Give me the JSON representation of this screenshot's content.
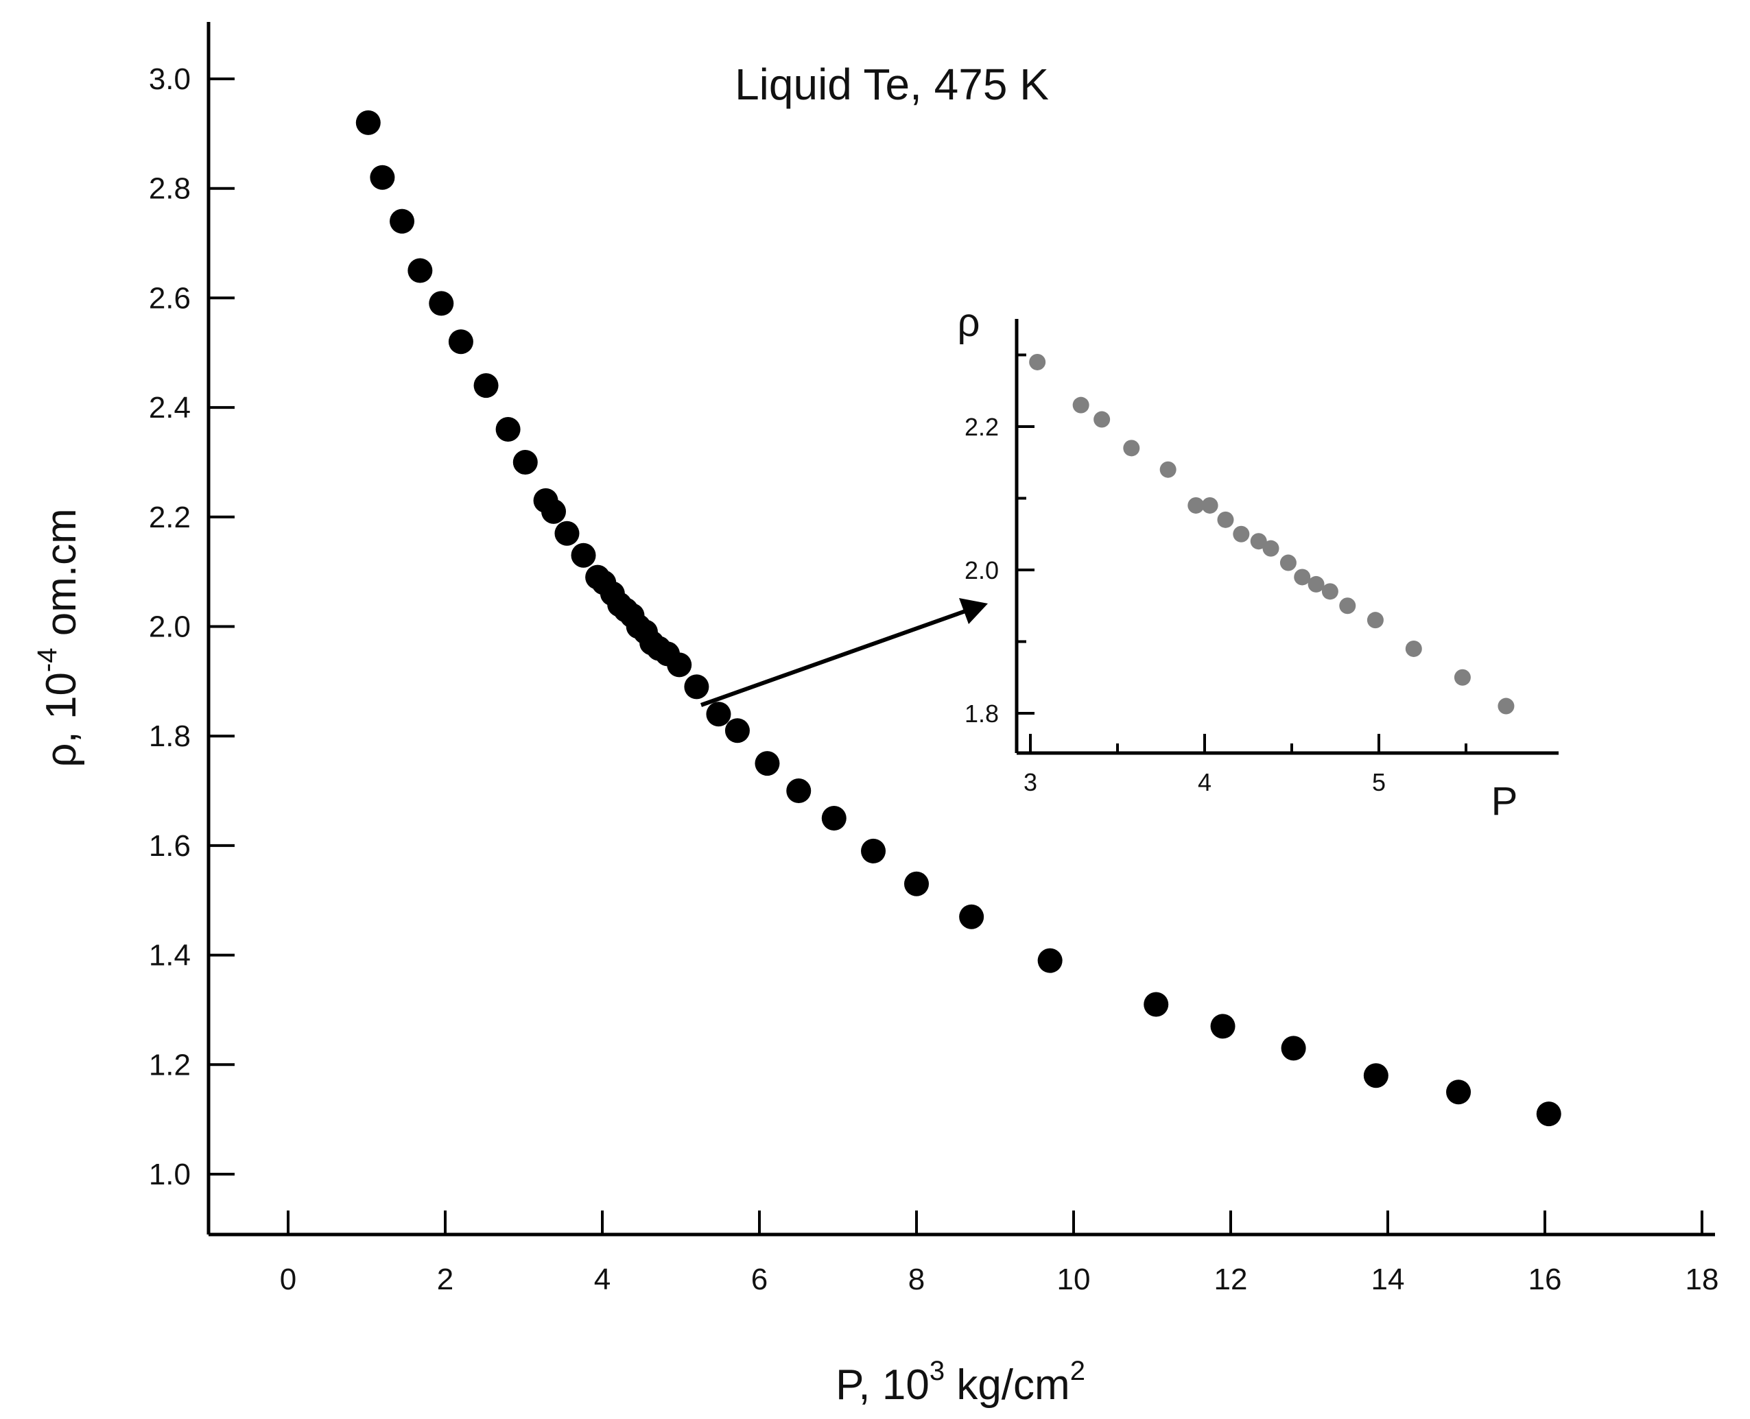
{
  "chart_data": [
    {
      "type": "scatter",
      "title": "Liquid Te, 475 K",
      "xlabel": {
        "prefix": "P, 10",
        "sup": "3",
        "suffix": " kg/cm",
        "sup2": "2"
      },
      "ylabel": {
        "prefix": "ρ, 10",
        "sup": "-4",
        "suffix": " om.cm"
      },
      "xlim": [
        -1,
        18
      ],
      "ylim": [
        0.9,
        3.1
      ],
      "xticks": [
        0,
        2,
        4,
        6,
        8,
        10,
        12,
        14,
        16,
        18
      ],
      "xtick_labels": [
        "0",
        "2",
        "4",
        "6",
        "8",
        "10",
        "12",
        "14",
        "16",
        "18"
      ],
      "yticks": [
        1.0,
        1.2,
        1.4,
        1.6,
        1.8,
        2.0,
        2.2,
        2.4,
        2.6,
        2.8,
        3.0
      ],
      "ytick_labels": [
        "1.0",
        "1.2",
        "1.4",
        "1.6",
        "1.8",
        "2.0",
        "2.2",
        "2.4",
        "2.6",
        "2.8",
        "3.0"
      ],
      "grid": false,
      "marker_color": "#000000",
      "points": [
        [
          1.02,
          2.92
        ],
        [
          1.2,
          2.82
        ],
        [
          1.45,
          2.74
        ],
        [
          1.68,
          2.65
        ],
        [
          1.95,
          2.59
        ],
        [
          2.2,
          2.52
        ],
        [
          2.52,
          2.44
        ],
        [
          2.8,
          2.36
        ],
        [
          3.02,
          2.3
        ],
        [
          3.28,
          2.23
        ],
        [
          3.38,
          2.21
        ],
        [
          3.55,
          2.17
        ],
        [
          3.76,
          2.13
        ],
        [
          3.94,
          2.09
        ],
        [
          4.02,
          2.08
        ],
        [
          4.13,
          2.06
        ],
        [
          4.22,
          2.04
        ],
        [
          4.3,
          2.03
        ],
        [
          4.38,
          2.02
        ],
        [
          4.46,
          2.0
        ],
        [
          4.55,
          1.99
        ],
        [
          4.63,
          1.97
        ],
        [
          4.72,
          1.96
        ],
        [
          4.83,
          1.95
        ],
        [
          4.98,
          1.93
        ],
        [
          5.2,
          1.89
        ],
        [
          5.48,
          1.84
        ],
        [
          5.72,
          1.81
        ],
        [
          6.1,
          1.75
        ],
        [
          6.5,
          1.7
        ],
        [
          6.95,
          1.65
        ],
        [
          7.45,
          1.59
        ],
        [
          8.0,
          1.53
        ],
        [
          8.7,
          1.47
        ],
        [
          9.7,
          1.39
        ],
        [
          11.05,
          1.31
        ],
        [
          11.9,
          1.27
        ],
        [
          12.8,
          1.23
        ],
        [
          13.85,
          1.18
        ],
        [
          14.9,
          1.15
        ],
        [
          16.05,
          1.11
        ]
      ]
    },
    {
      "type": "scatter",
      "inset": true,
      "xlabel": "P",
      "ylabel": "ρ",
      "xlim": [
        2.93,
        5.98
      ],
      "ylim": [
        1.75,
        2.35
      ],
      "xticks": [
        3,
        4,
        5
      ],
      "xtick_labels": [
        "3",
        "4",
        "5"
      ],
      "yticks": [
        1.8,
        2.0,
        2.2
      ],
      "ytick_labels": [
        "1.8",
        "2.0",
        "2.2"
      ],
      "grid": false,
      "marker_color": "#808080",
      "points": [
        [
          3.04,
          2.29
        ],
        [
          3.29,
          2.23
        ],
        [
          3.41,
          2.21
        ],
        [
          3.58,
          2.17
        ],
        [
          3.79,
          2.14
        ],
        [
          3.95,
          2.09
        ],
        [
          4.03,
          2.09
        ],
        [
          4.12,
          2.07
        ],
        [
          4.21,
          2.05
        ],
        [
          4.31,
          2.04
        ],
        [
          4.38,
          2.03
        ],
        [
          4.48,
          2.01
        ],
        [
          4.56,
          1.99
        ],
        [
          4.64,
          1.98
        ],
        [
          4.72,
          1.97
        ],
        [
          4.82,
          1.95
        ],
        [
          4.98,
          1.93
        ],
        [
          5.2,
          1.89
        ],
        [
          5.48,
          1.85
        ],
        [
          5.73,
          1.81
        ]
      ]
    }
  ]
}
